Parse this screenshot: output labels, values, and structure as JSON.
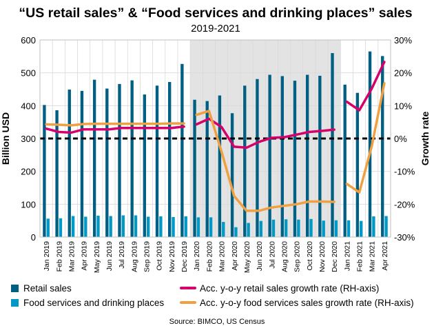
{
  "chart_data": {
    "type": "bar",
    "title": "“US retail sales” & “Food services and drinking places” sales",
    "subtitle": "2019-2021",
    "ylabel": "Billion USD",
    "y2label": "Growth rate",
    "source": "Source: BIMCO, US Census",
    "ylim": [
      0,
      600
    ],
    "yticks": [
      0,
      100,
      200,
      300,
      400,
      500,
      600
    ],
    "y2lim": [
      -30,
      30
    ],
    "y2ticks": [
      "-30%",
      "-20%",
      "-10%",
      "0%",
      "10%",
      "20%",
      "30%"
    ],
    "categories": [
      "Jan 2019",
      "Feb 2019",
      "Mar 2019",
      "Apr 2019",
      "May 2019",
      "Jun 2019",
      "Jul 2019",
      "Aug 2019",
      "Sep 2019",
      "Oct 2019",
      "Nov 2019",
      "Dec 2019",
      "Jan 2020",
      "Feb 2020",
      "Mar 2020",
      "Apr 2020",
      "May 2020",
      "Jun 2020",
      "Jul 2020",
      "Aug 2020",
      "Sep 2020",
      "Oct 2020",
      "Nov 2020",
      "Dec 2020",
      "Jan 2021",
      "Feb 2021",
      "Mar 2021",
      "Apr 2021"
    ],
    "shaded_period": [
      "Jan 2020",
      "Dec 2020"
    ],
    "zero_line": "dashed",
    "legend_position": "bottom",
    "series": [
      {
        "name": "Retail sales",
        "kind": "bar",
        "axis": "left",
        "color": "#005f83",
        "values": [
          402,
          386,
          449,
          445,
          479,
          452,
          466,
          477,
          434,
          461,
          472,
          527,
          418,
          414,
          431,
          377,
          461,
          481,
          494,
          490,
          476,
          494,
          491,
          560,
          464,
          439,
          565,
          551
        ]
      },
      {
        "name": "Food services and drinking places",
        "kind": "bar",
        "axis": "left",
        "color": "#0099c6",
        "values": [
          56,
          57,
          64,
          62,
          65,
          64,
          66,
          66,
          62,
          63,
          61,
          63,
          60,
          60,
          46,
          30,
          43,
          49,
          53,
          54,
          53,
          55,
          50,
          51,
          51,
          49,
          63,
          64
        ]
      },
      {
        "name": "Acc. y-o-y retail sales growth rate (RH-axis)",
        "kind": "line",
        "axis": "right",
        "color": "#d6006b",
        "segments": [
          {
            "start": 0,
            "values": [
              3.0,
              2.0,
              1.8,
              2.8,
              2.8,
              2.8,
              3.2,
              3.2,
              3.2,
              3.2,
              3.2,
              3.6
            ]
          },
          {
            "start": 12,
            "values": [
              4.3,
              6.0,
              3.5,
              -2.5,
              -2.8,
              -1.0,
              0.2,
              0.4,
              1.2,
              2.0,
              2.3,
              2.7
            ]
          },
          {
            "start": 24,
            "values": [
              11.2,
              8.6,
              15.2,
              23.3
            ]
          }
        ]
      },
      {
        "name": "Acc. y-o-y food services sales growth rate (RH-axis)",
        "kind": "line",
        "axis": "right",
        "color": "#f0a040",
        "segments": [
          {
            "start": 0,
            "values": [
              4.3,
              4.2,
              4.0,
              4.4,
              4.5,
              4.5,
              4.5,
              4.5,
              4.5,
              4.5,
              4.6,
              4.6
            ]
          },
          {
            "start": 12,
            "values": [
              7.2,
              8.4,
              -4.0,
              -17.5,
              -22.0,
              -22.0,
              -21.0,
              -20.5,
              -20.0,
              -19.2,
              -19.2,
              -19.3
            ]
          },
          {
            "start": 24,
            "values": [
              -13.8,
              -16.4,
              -2.3,
              16.8
            ]
          }
        ]
      }
    ]
  }
}
